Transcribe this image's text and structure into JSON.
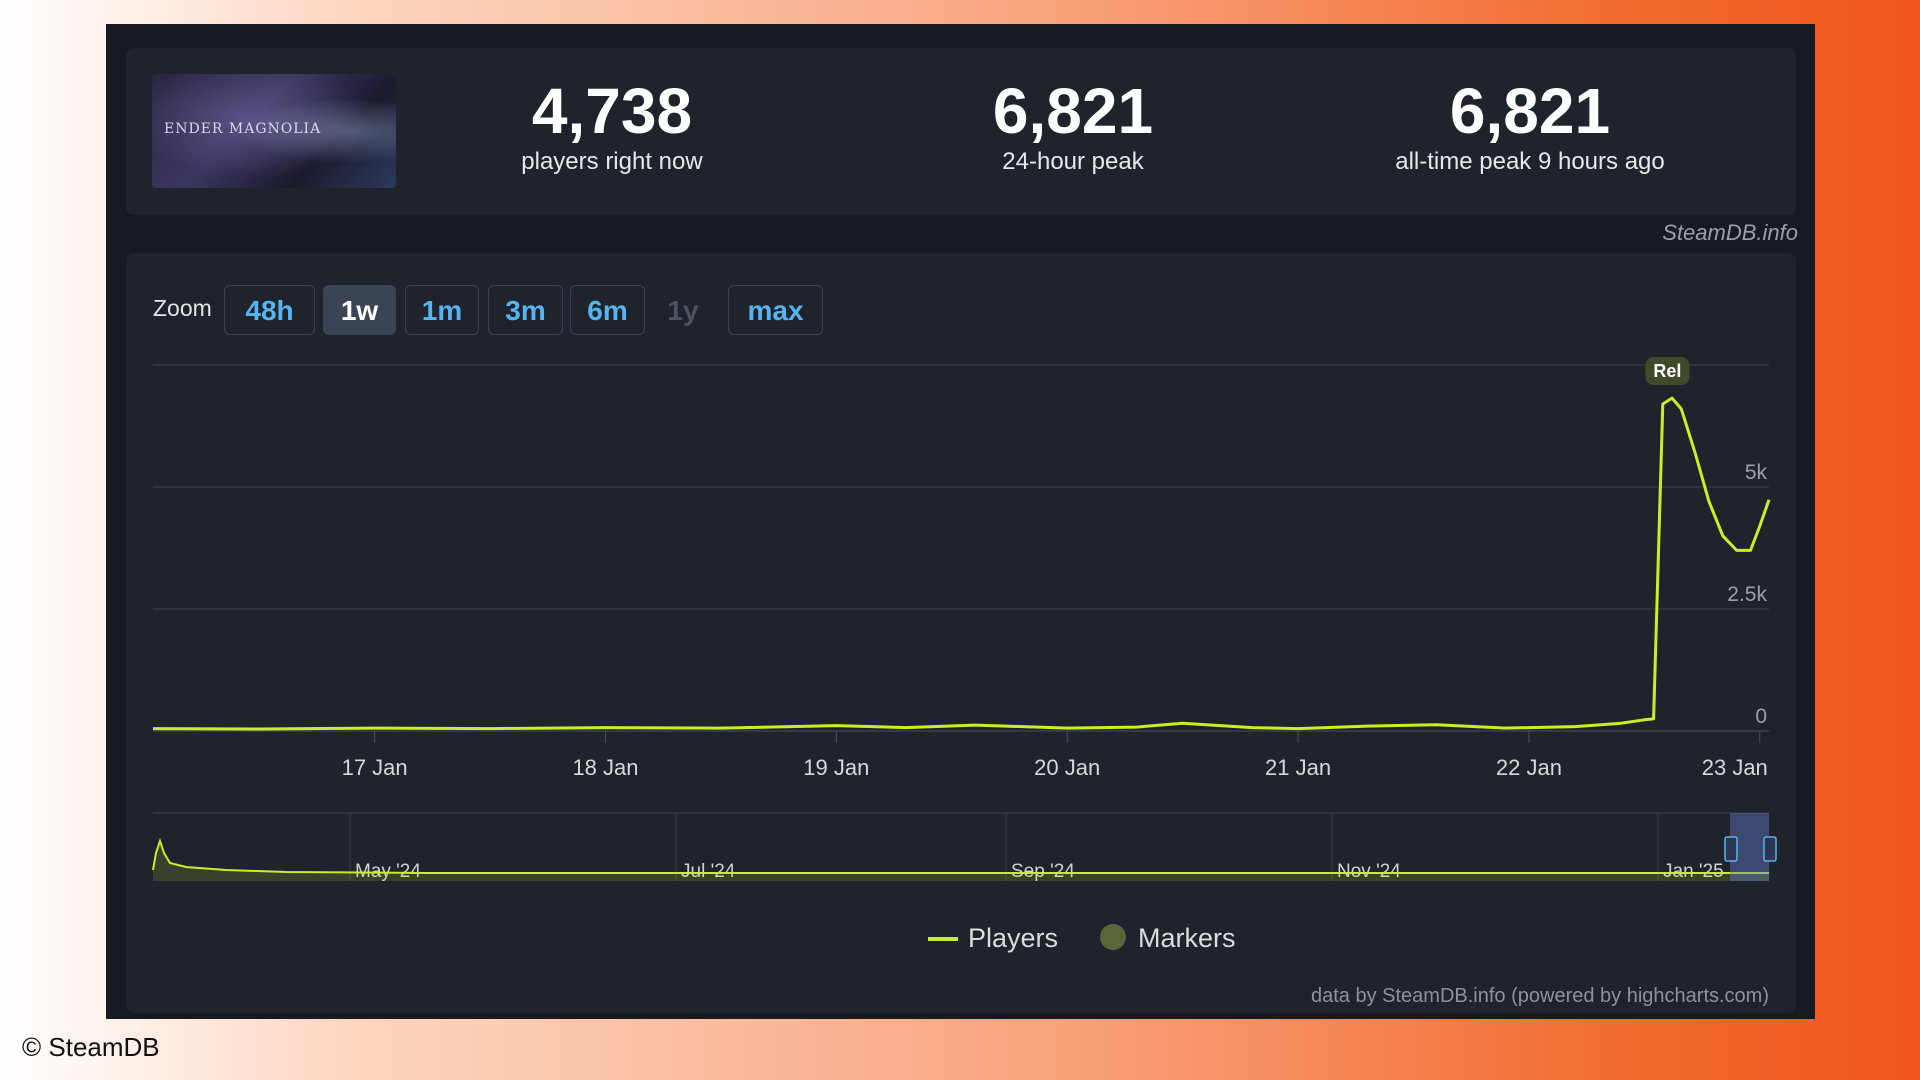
{
  "header": {
    "game_image_text": "ENDER MAGNOLIA",
    "stats": [
      {
        "value": "4,738",
        "label": "players right now"
      },
      {
        "value": "6,821",
        "label": "24-hour peak"
      },
      {
        "value": "6,821",
        "label": "all-time peak 9 hours ago"
      }
    ]
  },
  "watermark": "SteamDB.info",
  "zoom": {
    "label": "Zoom",
    "buttons": [
      {
        "label": "48h",
        "state": "normal"
      },
      {
        "label": "1w",
        "state": "active"
      },
      {
        "label": "1m",
        "state": "normal"
      },
      {
        "label": "3m",
        "state": "normal"
      },
      {
        "label": "6m",
        "state": "normal"
      },
      {
        "label": "1y",
        "state": "disabled"
      },
      {
        "label": "max",
        "state": "normal"
      }
    ]
  },
  "chart_data": {
    "type": "line",
    "x_tick_labels": [
      "17 Jan",
      "18 Jan",
      "19 Jan",
      "20 Jan",
      "21 Jan",
      "22 Jan",
      "23 Jan"
    ],
    "y_tick_labels": [
      "0",
      "2.5k",
      "5k"
    ],
    "ylim": [
      0,
      7500
    ],
    "x_range_days": [
      16.04,
      23.04
    ],
    "series": [
      {
        "name": "Players",
        "color": "#c7f027",
        "x": [
          16.04,
          16.5,
          17.0,
          17.5,
          18.0,
          18.5,
          19.0,
          19.3,
          19.6,
          20.0,
          20.3,
          20.5,
          20.8,
          21.0,
          21.3,
          21.6,
          21.9,
          22.2,
          22.4,
          22.5,
          22.54,
          22.58,
          22.62,
          22.66,
          22.72,
          22.78,
          22.84,
          22.9,
          22.96,
          23.0,
          23.04
        ],
        "values": [
          50,
          40,
          60,
          50,
          70,
          60,
          110,
          70,
          120,
          60,
          80,
          160,
          70,
          50,
          100,
          130,
          60,
          90,
          160,
          230,
          250,
          6700,
          6821,
          6600,
          5700,
          4700,
          4000,
          3700,
          3700,
          4200,
          4738
        ]
      }
    ],
    "markers": [
      {
        "x": 22.6,
        "label": "Rel"
      }
    ],
    "navigator": {
      "tick_labels": [
        "May '24",
        "Jul '24",
        "Sep '24",
        "Nov '24",
        "Jan '25"
      ]
    },
    "legend": [
      {
        "label": "Players",
        "color": "#c7f027",
        "kind": "line"
      },
      {
        "label": "Markers",
        "color": "#58663a",
        "kind": "dot"
      }
    ],
    "grid": true,
    "legend_position": "bottom-center"
  },
  "credit": "data by SteamDB.info (powered by highcharts.com)",
  "copyright": "© SteamDB"
}
